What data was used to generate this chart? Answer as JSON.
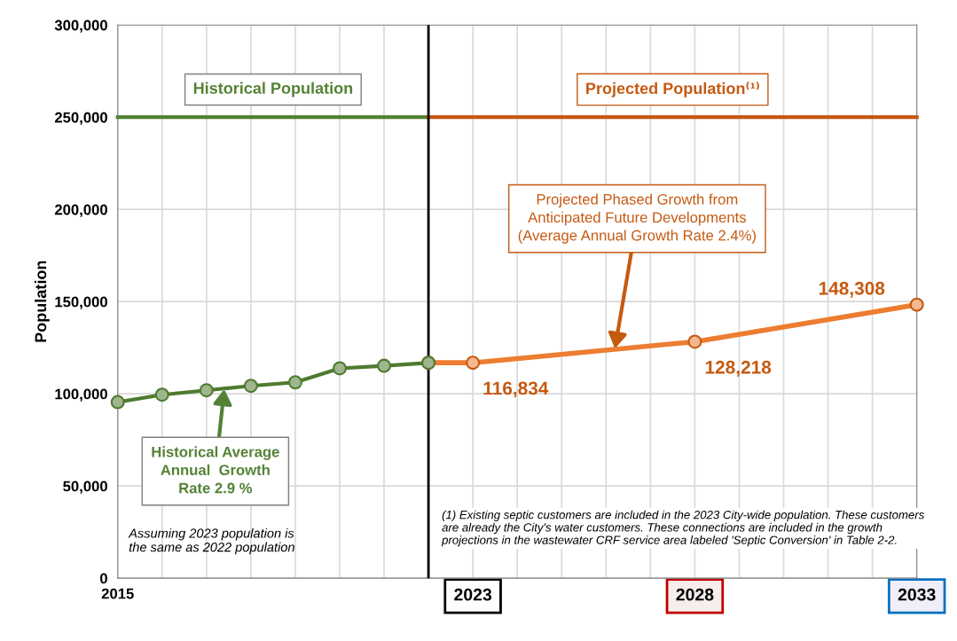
{
  "chart_data": {
    "type": "line",
    "ylabel": "Population",
    "xlim": [
      2015,
      2033
    ],
    "ylim": [
      0,
      300000
    ],
    "xticks": [
      {
        "value": 2015,
        "label": "2015"
      },
      {
        "value": 2016,
        "label": null
      },
      {
        "value": 2017,
        "label": null
      },
      {
        "value": 2018,
        "label": null
      },
      {
        "value": 2019,
        "label": null
      },
      {
        "value": 2020,
        "label": null
      },
      {
        "value": 2021,
        "label": null
      },
      {
        "value": 2022,
        "label": null
      },
      {
        "value": 2023,
        "label": "2023"
      },
      {
        "value": 2024,
        "label": null
      },
      {
        "value": 2025,
        "label": null
      },
      {
        "value": 2026,
        "label": null
      },
      {
        "value": 2027,
        "label": null
      },
      {
        "value": 2028,
        "label": "2028"
      },
      {
        "value": 2029,
        "label": null
      },
      {
        "value": 2030,
        "label": null
      },
      {
        "value": 2031,
        "label": null
      },
      {
        "value": 2032,
        "label": null
      },
      {
        "value": 2033,
        "label": "2033"
      }
    ],
    "yticks": [
      {
        "value": 0,
        "label": "0"
      },
      {
        "value": 50000,
        "label": "50,000"
      },
      {
        "value": 100000,
        "label": "100,000"
      },
      {
        "value": 150000,
        "label": "150,000"
      },
      {
        "value": 200000,
        "label": "200,000"
      },
      {
        "value": 250000,
        "label": "250,000"
      },
      {
        "value": 300000,
        "label": "300,000"
      }
    ],
    "grid": true,
    "legend": false,
    "series": [
      {
        "color": "#ed7d31",
        "marker": "circle",
        "x": [
          2022,
          2023,
          2028,
          2033
        ],
        "values": [
          116834,
          116834,
          128218,
          148308
        ],
        "value_labels": [
          null,
          "116,834",
          "128,218",
          "148,308"
        ]
      },
      {
        "color": "#4e7a2f",
        "marker": "circle",
        "x": [
          2015,
          2016,
          2017,
          2018,
          2019,
          2020,
          2021,
          2022
        ],
        "values": [
          95500,
          99500,
          101900,
          104300,
          106200,
          113800,
          115200,
          116800
        ]
      },
      {
        "name": "Historical Population",
        "color": "#548235",
        "marker": "none",
        "x": [
          2015,
          2022
        ],
        "values": [
          250000,
          250000
        ]
      },
      {
        "name": "Projected Population⁽¹⁾",
        "color": "#c55a11",
        "marker": "none",
        "x": [
          2022,
          2033
        ],
        "values": [
          250000,
          250000
        ]
      }
    ],
    "ref_lines": [
      {
        "axis": "x",
        "value": 2022,
        "color": "#000000"
      }
    ],
    "annotations": [
      {
        "text": "Historical Average\nAnnual  Growth\nRate 2.9 %",
        "x": 2017.4,
        "y": 102500
      },
      {
        "text": "Projected Phased Growth from\nAnticipated Future Developments\n(Average Annual Growth Rate 2.4%)",
        "x": 2026.2,
        "y": 124500
      },
      "Assuming 2023 population is\nthe same as 2022 population",
      "(1) Existing septic customers are included in the 2023 City-wide population. These customers\nare already the City's water customers. These connections are included in the growth\nprojections in the wastewater CRF service area labeled 'Septic Conversion' in Table 2-2."
    ]
  }
}
